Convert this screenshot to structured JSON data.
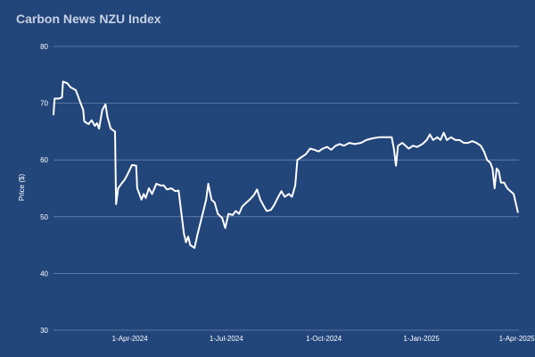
{
  "chart_data": {
    "type": "line",
    "title": "Carbon News NZU Index",
    "xlabel": "",
    "ylabel": "Price ($)",
    "ylim": [
      30,
      80
    ],
    "y_ticks": [
      30,
      40,
      50,
      60,
      70,
      80
    ],
    "x_ticks": [
      "1-Apr-2024",
      "1-Jul-2024",
      "1-Oct-2024",
      "1-Jan-2025",
      "1-Apr-2025"
    ],
    "xlim": [
      "2024-01-20",
      "2025-04-03"
    ],
    "grid": true,
    "legend": "none",
    "colors": {
      "background": "#22457a",
      "line": "#ffffff",
      "grid": "#6d86ad",
      "title": "#c8d2e3"
    },
    "series": [
      {
        "name": "",
        "points": [
          [
            "2024-01-20",
            68.0
          ],
          [
            "2024-01-21",
            70.8
          ],
          [
            "2024-01-25",
            70.8
          ],
          [
            "2024-01-28",
            71.0
          ],
          [
            "2024-01-29",
            73.8
          ],
          [
            "2024-02-02",
            73.5
          ],
          [
            "2024-02-05",
            72.8
          ],
          [
            "2024-02-10",
            72.3
          ],
          [
            "2024-02-14",
            70.3
          ],
          [
            "2024-02-17",
            68.8
          ],
          [
            "2024-02-18",
            66.8
          ],
          [
            "2024-02-22",
            66.3
          ],
          [
            "2024-02-25",
            67.0
          ],
          [
            "2024-02-28",
            66.0
          ],
          [
            "2024-03-01",
            66.5
          ],
          [
            "2024-03-03",
            65.5
          ],
          [
            "2024-03-06",
            68.8
          ],
          [
            "2024-03-09",
            69.8
          ],
          [
            "2024-03-11",
            67.5
          ],
          [
            "2024-03-14",
            65.5
          ],
          [
            "2024-03-18",
            65.0
          ],
          [
            "2024-03-19",
            52.2
          ],
          [
            "2024-03-21",
            55.0
          ],
          [
            "2024-03-24",
            55.8
          ],
          [
            "2024-03-27",
            56.5
          ],
          [
            "2024-03-30",
            57.5
          ],
          [
            "2024-04-03",
            59.1
          ],
          [
            "2024-04-07",
            59.0
          ],
          [
            "2024-04-08",
            55.0
          ],
          [
            "2024-04-12",
            53.0
          ],
          [
            "2024-04-14",
            54.0
          ],
          [
            "2024-04-16",
            53.3
          ],
          [
            "2024-04-19",
            55.0
          ],
          [
            "2024-04-22",
            54.0
          ],
          [
            "2024-04-26",
            55.8
          ],
          [
            "2024-04-30",
            55.5
          ],
          [
            "2024-05-03",
            55.5
          ],
          [
            "2024-05-06",
            54.8
          ],
          [
            "2024-05-10",
            55.0
          ],
          [
            "2024-05-14",
            54.5
          ],
          [
            "2024-05-17",
            54.6
          ],
          [
            "2024-05-20",
            50.0
          ],
          [
            "2024-05-22",
            47.0
          ],
          [
            "2024-05-24",
            45.5
          ],
          [
            "2024-05-26",
            46.5
          ],
          [
            "2024-05-28",
            45.0
          ],
          [
            "2024-06-01",
            44.5
          ],
          [
            "2024-06-04",
            47.0
          ],
          [
            "2024-06-08",
            50.0
          ],
          [
            "2024-06-12",
            53.0
          ],
          [
            "2024-06-14",
            55.8
          ],
          [
            "2024-06-17",
            53.0
          ],
          [
            "2024-06-20",
            52.5
          ],
          [
            "2024-06-23",
            50.5
          ],
          [
            "2024-06-27",
            49.8
          ],
          [
            "2024-06-30",
            48.0
          ],
          [
            "2024-07-03",
            50.5
          ],
          [
            "2024-07-07",
            50.3
          ],
          [
            "2024-07-10",
            51.0
          ],
          [
            "2024-07-13",
            50.5
          ],
          [
            "2024-07-16",
            51.8
          ],
          [
            "2024-07-20",
            52.5
          ],
          [
            "2024-07-23",
            53.0
          ],
          [
            "2024-07-27",
            53.8
          ],
          [
            "2024-07-30",
            54.8
          ],
          [
            "2024-08-02",
            53.0
          ],
          [
            "2024-08-05",
            52.0
          ],
          [
            "2024-08-08",
            51.0
          ],
          [
            "2024-08-12",
            51.2
          ],
          [
            "2024-08-15",
            52.0
          ],
          [
            "2024-08-19",
            53.5
          ],
          [
            "2024-08-22",
            54.5
          ],
          [
            "2024-08-25",
            53.5
          ],
          [
            "2024-08-29",
            54.0
          ],
          [
            "2024-09-01",
            53.5
          ],
          [
            "2024-09-04",
            55.5
          ],
          [
            "2024-09-06",
            60.0
          ],
          [
            "2024-09-10",
            60.5
          ],
          [
            "2024-09-14",
            61.0
          ],
          [
            "2024-09-18",
            62.0
          ],
          [
            "2024-09-22",
            61.8
          ],
          [
            "2024-09-26",
            61.5
          ],
          [
            "2024-09-30",
            62.0
          ],
          [
            "2024-10-04",
            62.3
          ],
          [
            "2024-10-08",
            61.8
          ],
          [
            "2024-10-12",
            62.5
          ],
          [
            "2024-10-16",
            62.8
          ],
          [
            "2024-10-20",
            62.5
          ],
          [
            "2024-10-25",
            63.0
          ],
          [
            "2024-10-30",
            62.8
          ],
          [
            "2024-11-05",
            63.0
          ],
          [
            "2024-11-10",
            63.5
          ],
          [
            "2024-11-16",
            63.8
          ],
          [
            "2024-11-22",
            64.0
          ],
          [
            "2024-11-28",
            64.0
          ],
          [
            "2024-12-04",
            64.0
          ],
          [
            "2024-12-06",
            62.0
          ],
          [
            "2024-12-08",
            59.0
          ],
          [
            "2024-12-10",
            62.5
          ],
          [
            "2024-12-14",
            63.0
          ],
          [
            "2024-12-17",
            62.5
          ],
          [
            "2024-12-20",
            62.0
          ],
          [
            "2024-12-24",
            62.5
          ],
          [
            "2024-12-28",
            62.3
          ],
          [
            "2025-01-02",
            62.8
          ],
          [
            "2025-01-06",
            63.5
          ],
          [
            "2025-01-09",
            64.5
          ],
          [
            "2025-01-12",
            63.5
          ],
          [
            "2025-01-16",
            64.0
          ],
          [
            "2025-01-19",
            63.5
          ],
          [
            "2025-01-22",
            64.8
          ],
          [
            "2025-01-25",
            63.5
          ],
          [
            "2025-01-29",
            64.0
          ],
          [
            "2025-02-02",
            63.5
          ],
          [
            "2025-02-06",
            63.5
          ],
          [
            "2025-02-10",
            63.0
          ],
          [
            "2025-02-14",
            63.0
          ],
          [
            "2025-02-18",
            63.3
          ],
          [
            "2025-02-22",
            63.0
          ],
          [
            "2025-02-26",
            62.5
          ],
          [
            "2025-03-01",
            61.5
          ],
          [
            "2025-03-04",
            60.0
          ],
          [
            "2025-03-07",
            59.5
          ],
          [
            "2025-03-09",
            58.5
          ],
          [
            "2025-03-11",
            55.0
          ],
          [
            "2025-03-13",
            58.5
          ],
          [
            "2025-03-15",
            58.0
          ],
          [
            "2025-03-17",
            56.0
          ],
          [
            "2025-03-20",
            56.0
          ],
          [
            "2025-03-23",
            55.0
          ],
          [
            "2025-03-26",
            54.5
          ],
          [
            "2025-03-29",
            54.0
          ],
          [
            "2025-04-02",
            50.8
          ]
        ]
      }
    ]
  }
}
